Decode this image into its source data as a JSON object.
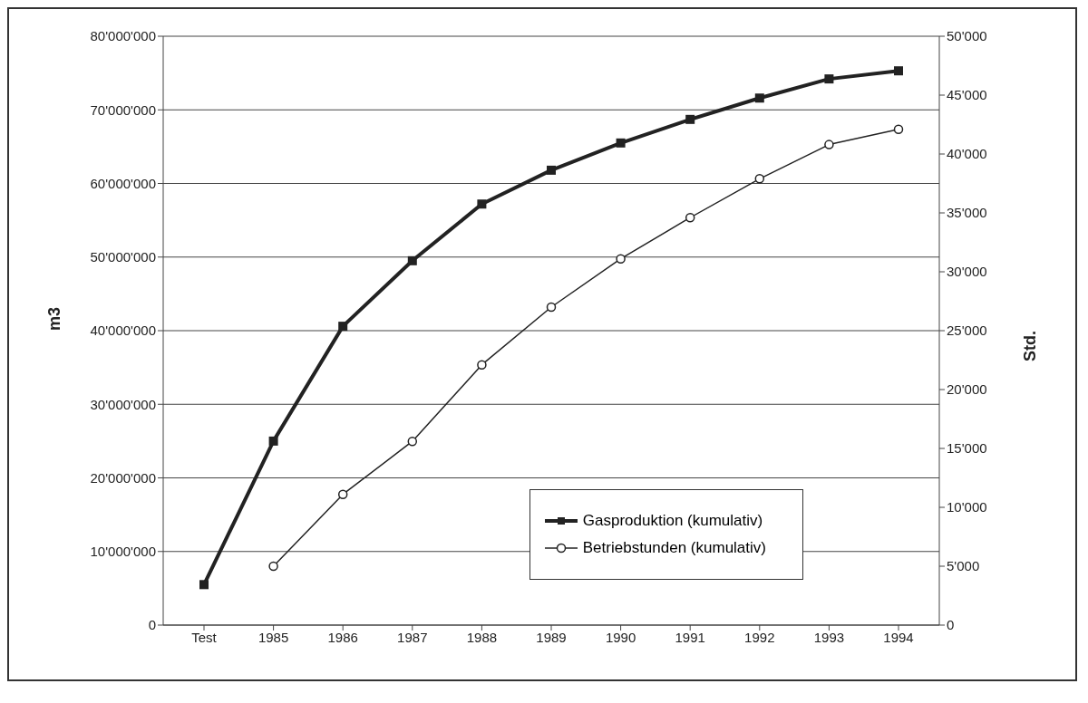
{
  "chart_data": {
    "type": "line",
    "ylabel": "m3",
    "y2label": "Std.",
    "categories": [
      "Test",
      "1985",
      "1986",
      "1987",
      "1988",
      "1989",
      "1990",
      "1991",
      "1992",
      "1993",
      "1994"
    ],
    "series": [
      {
        "name": "Gasproduktion (kumulativ)",
        "color": "#222222",
        "marker": "square",
        "values": [
          5500000,
          25000000,
          40600000,
          49500000,
          57200000,
          61800000,
          65500000,
          68700000,
          71600000,
          74200000,
          75300000
        ]
      },
      {
        "name": "Betriebstunden (kumulativ)",
        "color": "#222222",
        "marker": "circle",
        "axis": "y2",
        "values": [
          null,
          5000,
          11100,
          15600,
          22100,
          27000,
          31100,
          34600,
          37900,
          40800,
          42100
        ]
      }
    ],
    "ylim": [
      0,
      80000000
    ],
    "yticks": [
      {
        "value": 0,
        "label": "0"
      },
      {
        "value": 10000000,
        "label": "10'000'000"
      },
      {
        "value": 20000000,
        "label": "20'000'000"
      },
      {
        "value": 30000000,
        "label": "30'000'000"
      },
      {
        "value": 40000000,
        "label": "40'000'000"
      },
      {
        "value": 50000000,
        "label": "50'000'000"
      },
      {
        "value": 60000000,
        "label": "60'000'000"
      },
      {
        "value": 70000000,
        "label": "70'000'000"
      },
      {
        "value": 80000000,
        "label": "80'000'000"
      }
    ],
    "y2lim": [
      0,
      50000
    ],
    "y2ticks": [
      {
        "value": 0,
        "label": "0"
      },
      {
        "value": 5000,
        "label": "5'000"
      },
      {
        "value": 10000,
        "label": "10'000"
      },
      {
        "value": 15000,
        "label": "15'000"
      },
      {
        "value": 20000,
        "label": "20'000"
      },
      {
        "value": 25000,
        "label": "25'000"
      },
      {
        "value": 30000,
        "label": "30'000"
      },
      {
        "value": 35000,
        "label": "35'000"
      },
      {
        "value": 40000,
        "label": "40'000"
      },
      {
        "value": 45000,
        "label": "45'000"
      },
      {
        "value": 50000,
        "label": "50'000"
      }
    ],
    "grid": "y",
    "legend": "bottom right",
    "line_style": "solid"
  }
}
